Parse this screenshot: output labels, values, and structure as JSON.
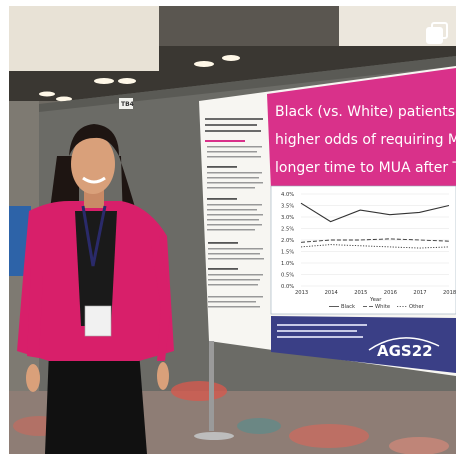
{
  "poster": {
    "headline_lines": [
      "Black (vs. White) patients had",
      "higher odds of requiring MUA and",
      "longer time to MUA after TKA."
    ],
    "board_number": "TB4"
  },
  "chart_data": {
    "type": "line",
    "title": "",
    "xlabel": "Year",
    "ylabel": "",
    "x": [
      "2013",
      "2014",
      "2015",
      "2016",
      "2017",
      "2018"
    ],
    "y_ticks": [
      "4.0%",
      "3.5%",
      "3.0%",
      "2.5%",
      "2.0%",
      "1.5%",
      "1.0%",
      "0.5%",
      "0.0%"
    ],
    "ylim": [
      0,
      4
    ],
    "series": [
      {
        "name": "Black",
        "style": "solid",
        "values": [
          3.6,
          2.8,
          3.3,
          3.1,
          3.2,
          3.5
        ]
      },
      {
        "name": "White",
        "style": "dashed",
        "values": [
          1.9,
          2.0,
          2.0,
          2.05,
          2.0,
          1.95
        ]
      },
      {
        "name": "Other",
        "style": "dotted",
        "values": [
          1.7,
          1.8,
          1.75,
          1.7,
          1.65,
          1.7
        ]
      }
    ],
    "legend_position": "bottom"
  },
  "logo": {
    "text": "AGS22"
  },
  "colors": {
    "headline_bg": "#d9318a",
    "blazer": "#d81f6a",
    "poster_footer": "#3a3f86",
    "board": "#6b6b66"
  },
  "icons": {
    "corner": "multiple-photos-icon"
  }
}
